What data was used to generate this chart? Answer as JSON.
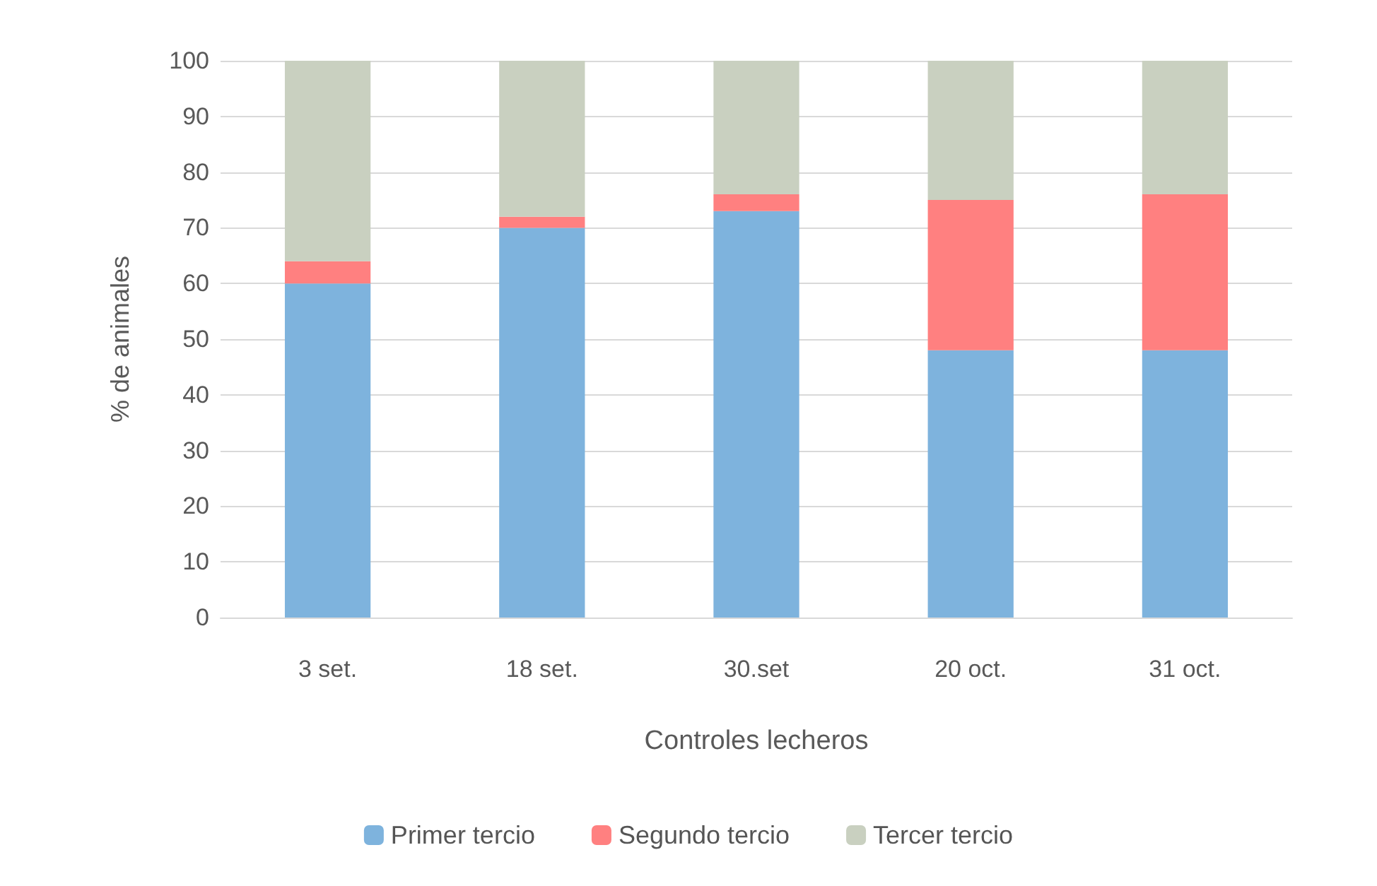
{
  "chart_data": {
    "type": "bar",
    "stacked": true,
    "xlabel": "Controles lecheros",
    "ylabel": "% de animales",
    "categories": [
      "3 set.",
      "18 set.",
      "30.set",
      "20 oct.",
      "31 oct."
    ],
    "series": [
      {
        "name": "Primer tercio",
        "color": "#7eb3dd",
        "values": [
          60,
          70,
          73,
          48,
          48
        ]
      },
      {
        "name": "Segundo tercio",
        "color": "#ff8080",
        "values": [
          4,
          2,
          3,
          27,
          28
        ]
      },
      {
        "name": "Tercer tercio",
        "color": "#c9d0c0",
        "values": [
          36,
          28,
          24,
          25,
          24
        ]
      }
    ],
    "ylim": [
      0,
      100
    ],
    "yticks": [
      0,
      10,
      20,
      30,
      40,
      50,
      60,
      70,
      80,
      90,
      100
    ],
    "grid": "y",
    "legend": "bottom"
  }
}
